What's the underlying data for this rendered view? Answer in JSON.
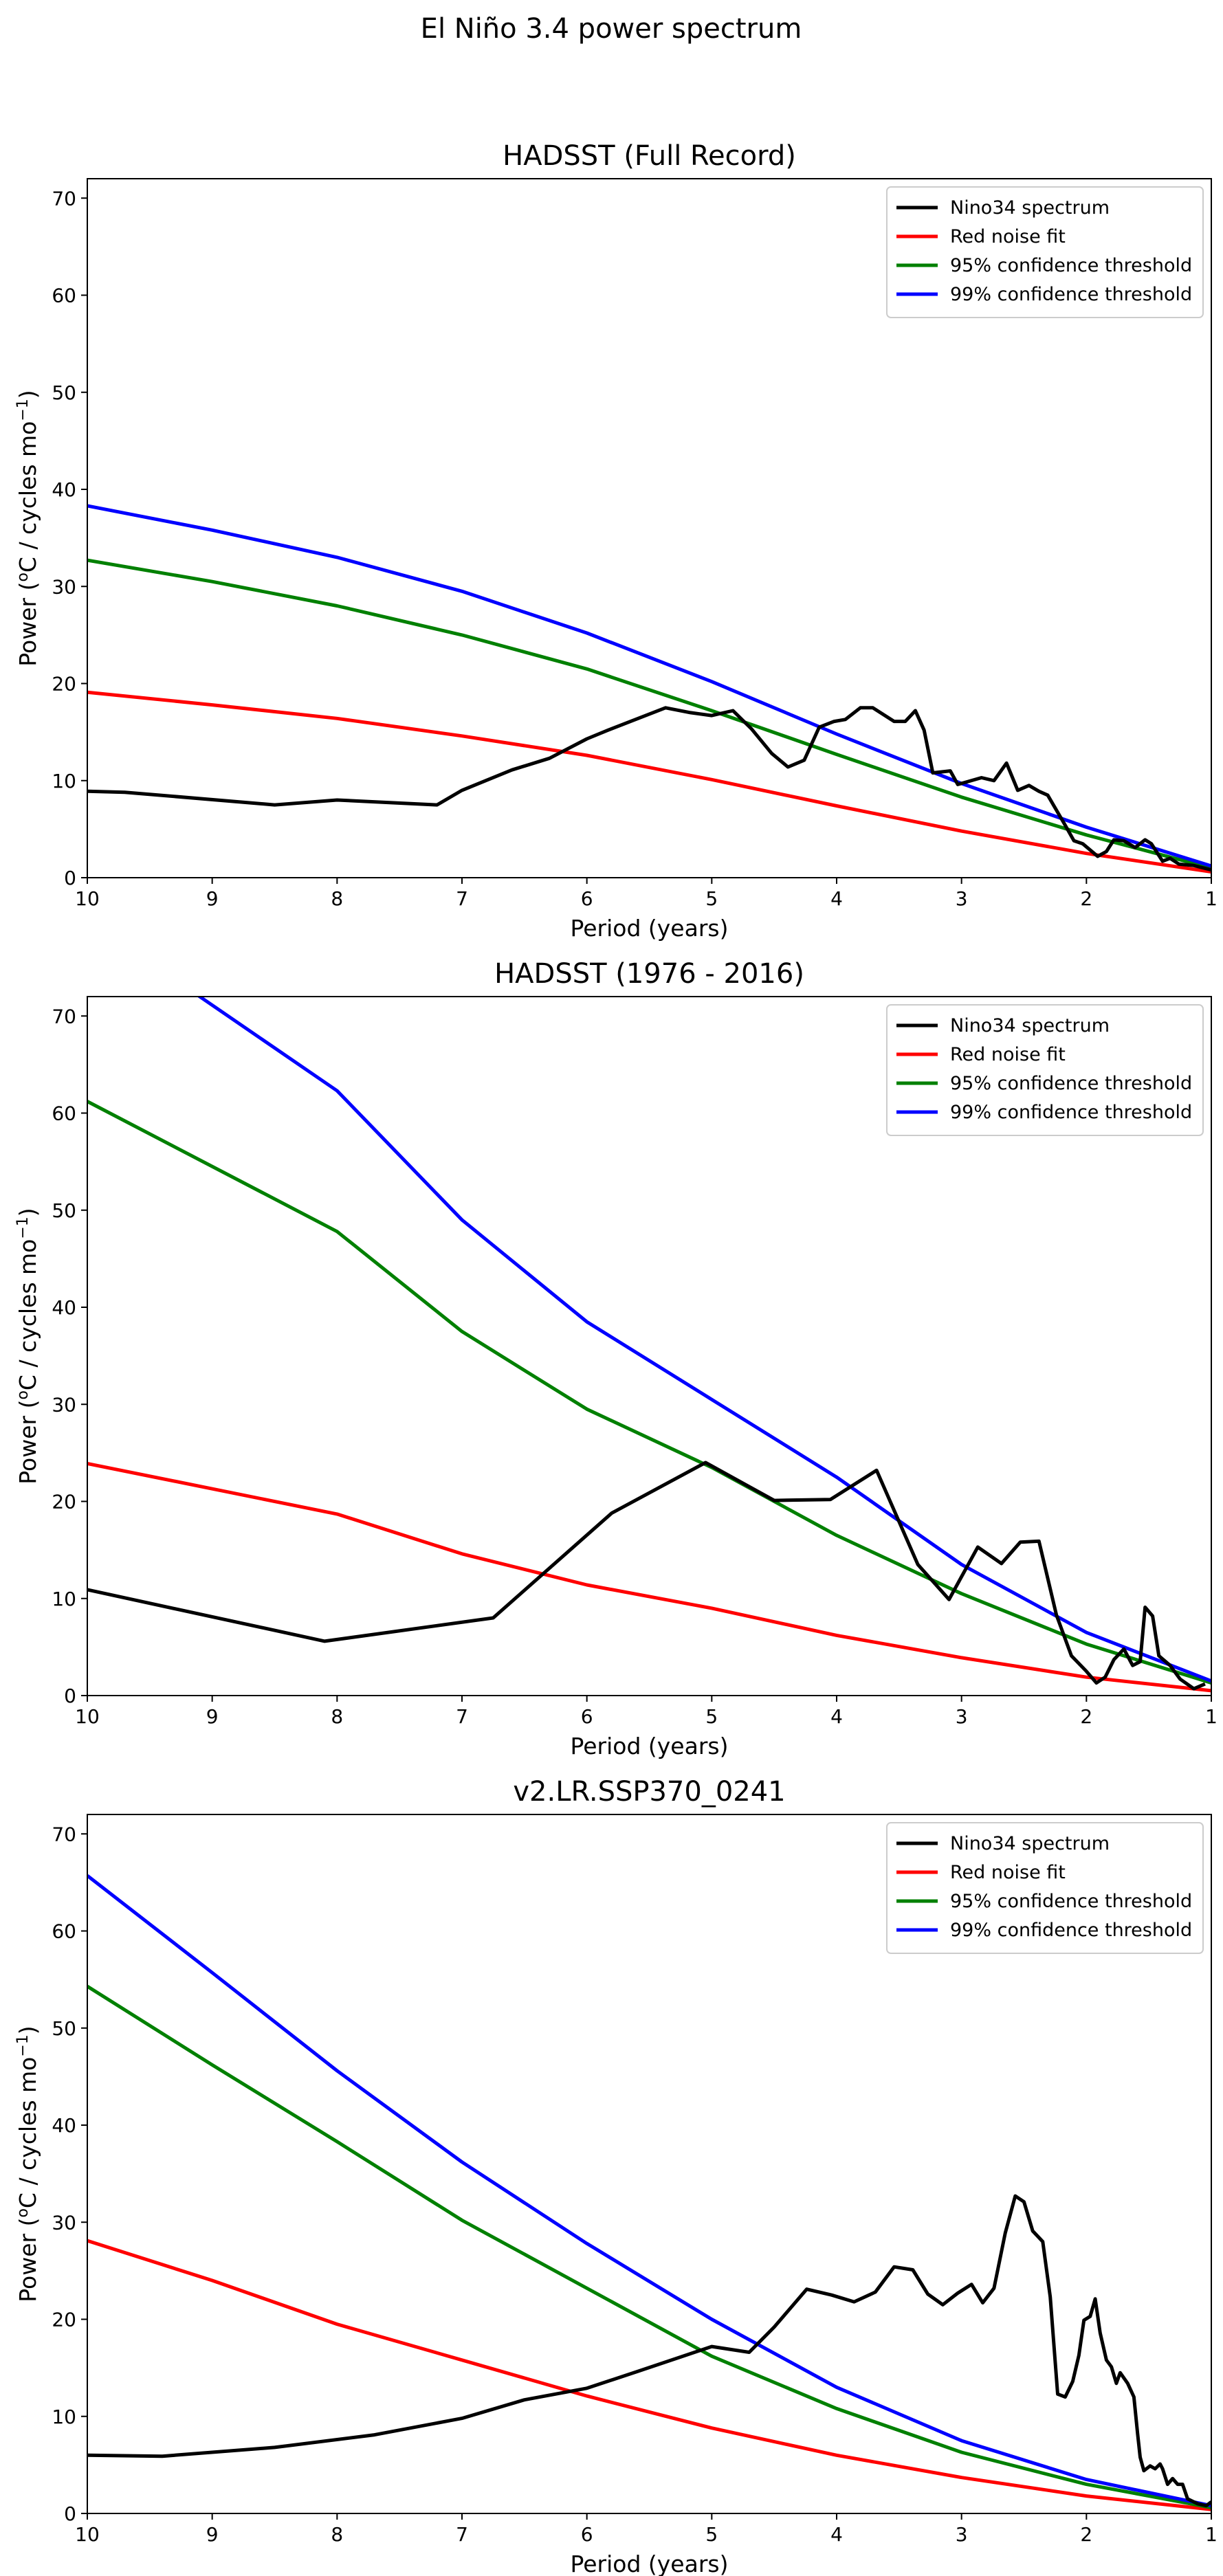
{
  "figure": {
    "suptitle": "El Niño 3.4 power spectrum"
  },
  "legend_labels": [
    "Nino34 spectrum",
    "Red noise fit",
    "95% confidence threshold",
    "99% confidence threshold"
  ],
  "colors": {
    "spectrum": "#000000",
    "red_noise": "#ff0000",
    "conf95": "#008000",
    "conf99": "#0000ff"
  },
  "chart_data": [
    {
      "type": "line",
      "title": "HADSST (Full Record)",
      "xlabel": "Period (years)",
      "ylabel": "Power (oC / cycles mo-1)",
      "xlim": [
        10,
        1
      ],
      "ylim": [
        0,
        72
      ],
      "xticks": [
        10,
        9,
        8,
        7,
        6,
        5,
        4,
        3,
        2,
        1
      ],
      "yticks": [
        0,
        10,
        20,
        30,
        40,
        50,
        60,
        70
      ],
      "legend": "top-right",
      "grid": false,
      "series": [
        {
          "name": "Nino34 spectrum",
          "color": "#000000",
          "x": [
            10,
            9.7,
            8.5,
            8.0,
            7.2,
            7.0,
            6.6,
            6.3,
            6.0,
            5.83,
            5.37,
            5.17,
            5.0,
            4.83,
            4.68,
            4.52,
            4.39,
            4.26,
            4.14,
            4.02,
            3.93,
            3.81,
            3.71,
            3.54,
            3.45,
            3.37,
            3.3,
            3.23,
            3.09,
            3.03,
            2.84,
            2.74,
            2.64,
            2.55,
            2.46,
            2.38,
            2.31,
            2.17,
            2.1,
            2.03,
            1.91,
            1.84,
            1.78,
            1.7,
            1.61,
            1.53,
            1.48,
            1.39,
            1.33,
            1.26,
            1.14,
            1.0
          ],
          "y": [
            8.9,
            8.8,
            7.5,
            8.0,
            7.5,
            9.0,
            11.1,
            12.3,
            14.3,
            15.2,
            17.5,
            17.0,
            16.7,
            17.2,
            15.3,
            12.8,
            11.4,
            12.1,
            15.5,
            16.1,
            16.3,
            17.5,
            17.5,
            16.1,
            16.1,
            17.2,
            15.2,
            10.8,
            11.0,
            9.6,
            10.3,
            10.0,
            11.8,
            9.0,
            9.5,
            8.9,
            8.5,
            5.4,
            3.8,
            3.5,
            2.2,
            2.7,
            3.9,
            3.8,
            3.1,
            3.9,
            3.5,
            1.7,
            2.0,
            1.4,
            1.25,
            0.8
          ]
        },
        {
          "name": "Red noise fit",
          "color": "#ff0000",
          "x": [
            10,
            9,
            8,
            7,
            6,
            5,
            4,
            3,
            2,
            1
          ],
          "y": [
            19.1,
            17.8,
            16.4,
            14.6,
            12.6,
            10.1,
            7.4,
            4.8,
            2.5,
            0.6
          ]
        },
        {
          "name": "95% confidence threshold",
          "color": "#008000",
          "x": [
            10,
            9,
            8,
            7,
            6,
            5,
            4,
            3,
            2,
            1
          ],
          "y": [
            32.7,
            30.5,
            28.0,
            25.0,
            21.5,
            17.2,
            12.7,
            8.3,
            4.4,
            1.0
          ]
        },
        {
          "name": "99% confidence threshold",
          "color": "#0000ff",
          "x": [
            10,
            9,
            8,
            7,
            6,
            5,
            4,
            3,
            2,
            1
          ],
          "y": [
            38.3,
            35.8,
            33.0,
            29.5,
            25.2,
            20.2,
            14.8,
            9.7,
            5.2,
            1.2
          ]
        }
      ]
    },
    {
      "type": "line",
      "title": "HADSST (1976 - 2016)",
      "xlabel": "Period (years)",
      "ylabel": "Power (oC / cycles mo-1)",
      "xlim": [
        10,
        1
      ],
      "ylim": [
        0,
        72
      ],
      "xticks": [
        10,
        9,
        8,
        7,
        6,
        5,
        4,
        3,
        2,
        1
      ],
      "yticks": [
        0,
        10,
        20,
        30,
        40,
        50,
        60,
        70
      ],
      "legend": "top-right",
      "grid": false,
      "series": [
        {
          "name": "Nino34 spectrum",
          "color": "#000000",
          "x": [
            10,
            8.1,
            6.75,
            5.8,
            5.05,
            4.5,
            4.05,
            3.68,
            3.35,
            3.1,
            2.87,
            2.68,
            2.53,
            2.38,
            2.24,
            2.12,
            2.0,
            1.92,
            1.85,
            1.78,
            1.7,
            1.63,
            1.57,
            1.53,
            1.47,
            1.42,
            1.33,
            1.25,
            1.14,
            1.05
          ],
          "y": [
            10.9,
            5.6,
            8.0,
            18.8,
            24.0,
            20.1,
            20.2,
            23.2,
            13.5,
            9.9,
            15.3,
            13.6,
            15.8,
            15.9,
            8.3,
            4.1,
            2.5,
            1.3,
            1.9,
            3.7,
            4.8,
            3.1,
            3.5,
            9.1,
            8.2,
            4.1,
            3.1,
            1.7,
            0.7,
            1.2
          ]
        },
        {
          "name": "Red noise fit",
          "color": "#ff0000",
          "x": [
            10,
            8,
            7,
            6,
            5,
            4,
            3,
            2,
            1
          ],
          "y": [
            23.9,
            18.7,
            14.6,
            11.4,
            9.0,
            6.2,
            3.9,
            1.9,
            0.5
          ]
        },
        {
          "name": "95% confidence threshold",
          "color": "#008000",
          "x": [
            10,
            8,
            7,
            6,
            5,
            4,
            3,
            2,
            1
          ],
          "y": [
            61.2,
            47.8,
            37.5,
            29.5,
            23.5,
            16.5,
            10.5,
            5.3,
            1.3
          ]
        },
        {
          "name": "99% confidence threshold",
          "color": "#0000ff",
          "x": [
            10,
            9.1,
            8,
            7,
            6,
            5,
            4,
            3,
            2,
            1
          ],
          "y": [
            80.0,
            72.0,
            62.3,
            49.0,
            38.5,
            30.5,
            22.5,
            13.5,
            6.5,
            1.5
          ]
        }
      ]
    },
    {
      "type": "line",
      "title": "v2.LR.SSP370_0241",
      "xlabel": "Period (years)",
      "ylabel": "Power (oC / cycles mo-1)",
      "xlim": [
        10,
        1
      ],
      "ylim": [
        0,
        72
      ],
      "xticks": [
        10,
        9,
        8,
        7,
        6,
        5,
        4,
        3,
        2,
        1
      ],
      "yticks": [
        0,
        10,
        20,
        30,
        40,
        50,
        60,
        70
      ],
      "legend": "top-right",
      "grid": false,
      "series": [
        {
          "name": "Nino34 spectrum",
          "color": "#000000",
          "x": [
            10,
            9.4,
            8.5,
            7.7,
            7.0,
            6.5,
            6.0,
            5.6,
            5.0,
            4.7,
            4.5,
            4.24,
            4.04,
            3.86,
            3.69,
            3.54,
            3.39,
            3.27,
            3.15,
            3.03,
            2.92,
            2.83,
            2.74,
            2.65,
            2.57,
            2.5,
            2.43,
            2.35,
            2.29,
            2.23,
            2.17,
            2.11,
            2.06,
            2.02,
            1.97,
            1.93,
            1.89,
            1.84,
            1.8,
            1.76,
            1.73,
            1.67,
            1.62,
            1.59,
            1.57,
            1.54,
            1.49,
            1.45,
            1.41,
            1.39,
            1.35,
            1.31,
            1.27,
            1.23,
            1.19,
            1.11,
            1.04,
            1.0
          ],
          "y": [
            6.0,
            5.9,
            6.8,
            8.1,
            9.8,
            11.7,
            12.9,
            14.6,
            17.2,
            16.6,
            19.2,
            23.1,
            22.5,
            21.8,
            22.8,
            25.4,
            25.1,
            22.6,
            21.5,
            22.7,
            23.6,
            21.7,
            23.2,
            28.9,
            32.7,
            32.1,
            29.1,
            28.0,
            22.3,
            12.3,
            12.0,
            13.6,
            16.3,
            19.9,
            20.3,
            22.1,
            18.6,
            15.8,
            15.1,
            13.4,
            14.5,
            13.4,
            12.0,
            8.2,
            5.8,
            4.4,
            4.9,
            4.6,
            5.1,
            4.6,
            3.0,
            3.6,
            3.0,
            3.0,
            1.5,
            1.0,
            0.8,
            1.2
          ]
        },
        {
          "name": "Red noise fit",
          "color": "#ff0000",
          "x": [
            10,
            9,
            8,
            7,
            6,
            5,
            4,
            3,
            2,
            1
          ],
          "y": [
            28.1,
            24.0,
            19.5,
            15.8,
            12.1,
            8.8,
            6.0,
            3.7,
            1.8,
            0.4
          ]
        },
        {
          "name": "95% confidence threshold",
          "color": "#008000",
          "x": [
            10,
            9,
            8,
            7,
            6,
            5,
            4,
            3,
            2,
            1
          ],
          "y": [
            54.3,
            46.2,
            38.3,
            30.2,
            23.2,
            16.2,
            10.8,
            6.3,
            3.0,
            0.6
          ]
        },
        {
          "name": "99% confidence threshold",
          "color": "#0000ff",
          "x": [
            10,
            9,
            8,
            7,
            6,
            5,
            4,
            3,
            2,
            1
          ],
          "y": [
            65.7,
            55.7,
            45.6,
            36.2,
            27.8,
            20.0,
            13.0,
            7.5,
            3.5,
            0.8
          ]
        }
      ]
    }
  ]
}
